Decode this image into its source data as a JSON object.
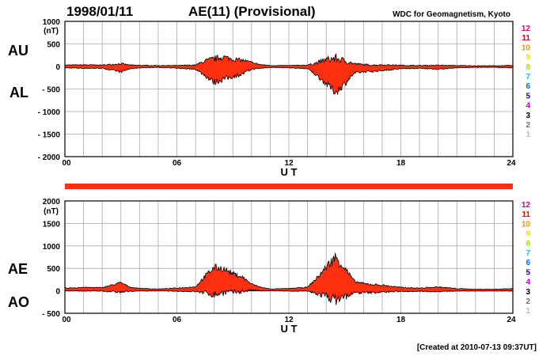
{
  "header": {
    "date": "1998/01/11",
    "title": "AE(11) (Provisional)",
    "organization": "WDC for Geomagnetism, Kyoto"
  },
  "footer": {
    "created": "[Created at 2010-07-13 09:37UT]"
  },
  "legend": {
    "items": [
      {
        "label": "12",
        "color": "#e0007a"
      },
      {
        "label": "11",
        "color": "#e00000"
      },
      {
        "label": "10",
        "color": "#f09000"
      },
      {
        "label": "9",
        "color": "#f0e000"
      },
      {
        "label": "8",
        "color": "#a8e000"
      },
      {
        "label": "7",
        "color": "#00c8e0"
      },
      {
        "label": "6",
        "color": "#0070e0"
      },
      {
        "label": "5",
        "color": "#2000c0"
      },
      {
        "label": "4",
        "color": "#c000e0"
      },
      {
        "label": "3",
        "color": "#000000"
      },
      {
        "label": "2",
        "color": "#707070"
      },
      {
        "label": "1",
        "color": "#b8b8b8"
      }
    ]
  },
  "colors": {
    "fill": "#ff3010",
    "stroke": "#000000",
    "grid": "#aaaaaa",
    "bar": "#ff3010"
  },
  "chart_data": [
    {
      "type": "area",
      "name": "AU/AL",
      "labels": {
        "upper": "AU",
        "lower": "AL"
      },
      "unit": "(nT)",
      "xlabel": "U T",
      "xlim": [
        0,
        24
      ],
      "x_ticks": [
        "00",
        "06",
        "12",
        "18",
        "24"
      ],
      "ylim": [
        -2000,
        1000
      ],
      "y_ticks": [
        "1000",
        "500",
        "0",
        "- 500",
        "- 1000",
        "- 1500",
        "- 2000"
      ],
      "grid": true,
      "series": [
        {
          "name": "AU",
          "x": [
            0,
            1,
            2,
            2.5,
            3,
            3.5,
            4,
            5,
            6,
            7,
            7.5,
            8,
            8.5,
            9,
            9.5,
            10,
            10.5,
            11,
            12,
            13,
            13.5,
            14,
            14.5,
            15,
            15.5,
            16,
            16.5,
            17,
            18,
            19,
            20,
            21,
            22,
            23,
            24
          ],
          "values": [
            30,
            35,
            30,
            45,
            60,
            30,
            25,
            20,
            20,
            30,
            120,
            170,
            210,
            160,
            140,
            90,
            40,
            20,
            20,
            30,
            80,
            150,
            180,
            120,
            60,
            40,
            30,
            35,
            25,
            20,
            25,
            20,
            15,
            15,
            20
          ]
        },
        {
          "name": "AL",
          "x": [
            0,
            1,
            2,
            2.5,
            3,
            3.5,
            4,
            5,
            6,
            7,
            7.5,
            8,
            8.5,
            9,
            9.5,
            10,
            10.5,
            11,
            12,
            13,
            13.5,
            14,
            14.5,
            15,
            15.5,
            16,
            16.5,
            17,
            18,
            19,
            20,
            21,
            22,
            23,
            24
          ],
          "values": [
            -30,
            -40,
            -40,
            -80,
            -120,
            -50,
            -30,
            -20,
            -40,
            -60,
            -200,
            -350,
            -280,
            -220,
            -170,
            -60,
            -40,
            -20,
            -30,
            -50,
            -200,
            -380,
            -570,
            -380,
            -150,
            -120,
            -110,
            -90,
            -50,
            -40,
            -60,
            -30,
            -20,
            -20,
            -30
          ]
        }
      ]
    },
    {
      "type": "area",
      "name": "AE/AO",
      "labels": {
        "upper": "AE",
        "lower": "AO"
      },
      "unit": "(nT)",
      "xlabel": "U T",
      "xlim": [
        0,
        24
      ],
      "x_ticks": [
        "00",
        "06",
        "12",
        "18",
        "24"
      ],
      "ylim": [
        -500,
        2000
      ],
      "y_ticks": [
        "2000",
        "1500",
        "1000",
        "500",
        "0",
        "- 500"
      ],
      "grid": true,
      "series": [
        {
          "name": "AE",
          "x": [
            0,
            1,
            2,
            2.5,
            3,
            3.5,
            4,
            5,
            6,
            7,
            7.5,
            8,
            8.5,
            9,
            9.5,
            10,
            10.5,
            11,
            12,
            13,
            13.5,
            14,
            14.5,
            15,
            15.5,
            16,
            16.5,
            17,
            18,
            19,
            20,
            21,
            22,
            23,
            24
          ],
          "values": [
            60,
            75,
            70,
            125,
            180,
            80,
            55,
            40,
            60,
            90,
            320,
            520,
            490,
            380,
            310,
            150,
            80,
            40,
            50,
            80,
            280,
            530,
            750,
            500,
            210,
            160,
            140,
            125,
            75,
            60,
            85,
            50,
            35,
            35,
            50
          ]
        },
        {
          "name": "AO",
          "x": [
            0,
            1,
            2,
            2.5,
            3,
            3.5,
            4,
            5,
            6,
            7,
            7.5,
            8,
            8.5,
            9,
            9.5,
            10,
            10.5,
            11,
            12,
            13,
            13.5,
            14,
            14.5,
            15,
            15.5,
            16,
            16.5,
            17,
            18,
            19,
            20,
            21,
            22,
            23,
            24
          ],
          "values": [
            0,
            -3,
            -5,
            -18,
            -30,
            -10,
            -3,
            0,
            -10,
            -15,
            -40,
            -90,
            -35,
            -30,
            -15,
            15,
            0,
            0,
            -5,
            -10,
            -60,
            -115,
            -195,
            -130,
            -45,
            -40,
            -40,
            -28,
            -13,
            -10,
            -18,
            -5,
            -3,
            -3,
            -5
          ]
        }
      ]
    }
  ]
}
